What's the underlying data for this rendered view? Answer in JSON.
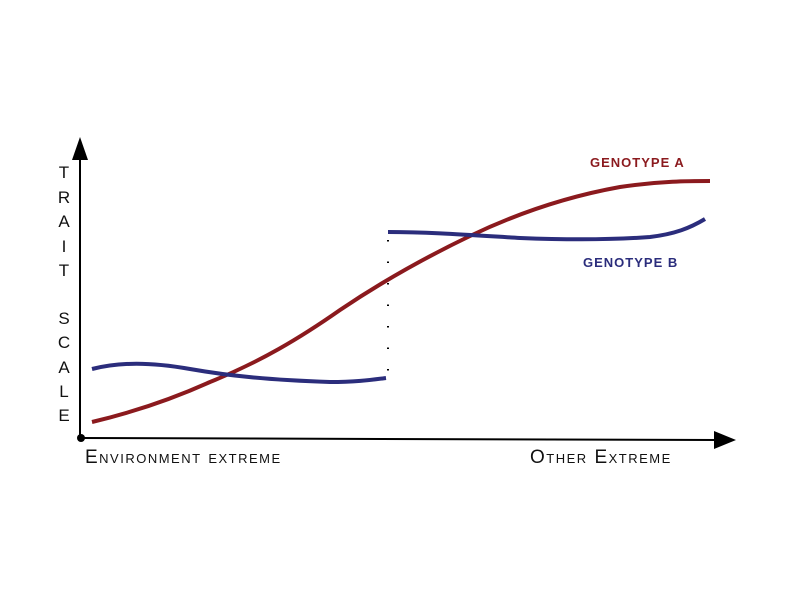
{
  "diagram": {
    "y_axis_label": "TRAIT SCALE",
    "y_axis_letters": [
      "T",
      "R",
      "A",
      "I",
      "T",
      "S",
      "C",
      "A",
      "L",
      "E"
    ],
    "x_axis_left_label": "Environment extreme",
    "x_axis_right_label": "Other Extreme",
    "series": [
      {
        "name": "GENOTYPE A",
        "color": "#8b1a1e"
      },
      {
        "name": "GENOTYPE B",
        "color": "#2b2d7c"
      }
    ]
  }
}
